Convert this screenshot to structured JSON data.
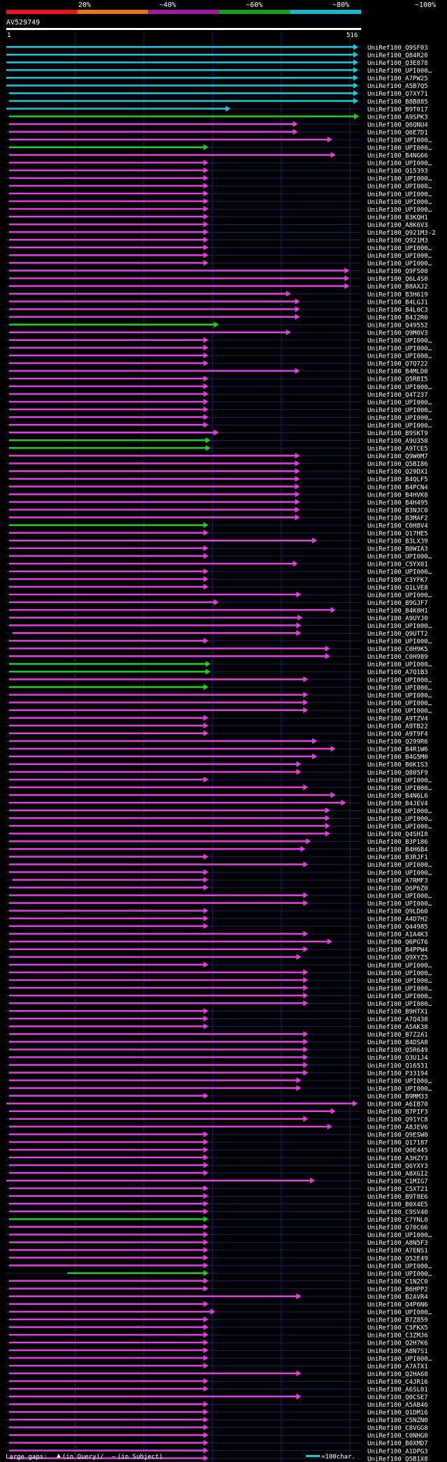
{
  "query": {
    "id": "AV529749",
    "start": "1",
    "end": "516",
    "length": 516
  },
  "identity_scale": {
    "labels": [
      "20%",
      "~40%",
      "~60%",
      "~80%",
      "~100%"
    ],
    "colors": [
      "#e8141c",
      "#e8751a",
      "#9e1c9e",
      "#1c9e1c",
      "#1cb4c8"
    ]
  },
  "legend": {
    "large_gaps": "Large gaps:",
    "in_query": "(in Query)/",
    "in_subject": "(in Subject)",
    "scale": "=100char."
  },
  "colors": {
    "cyan": "#1cc8dc",
    "magenta": "#e040e0",
    "green": "#20d020",
    "grid": "#202060",
    "gap": "#ffffa0"
  },
  "hits": [
    {
      "id": "UniRef100_Q9SF03",
      "s": 1,
      "e": 513,
      "c": "c"
    },
    {
      "id": "UniRef100_Q84R20",
      "s": 1,
      "e": 513,
      "c": "c"
    },
    {
      "id": "UniRef100_Q3E878",
      "s": 1,
      "e": 513,
      "c": "c"
    },
    {
      "id": "UniRef100_UPI000…",
      "s": 1,
      "e": 513,
      "c": "c"
    },
    {
      "id": "UniRef100_A7PW25",
      "s": 1,
      "e": 513,
      "c": "c"
    },
    {
      "id": "UniRef100_A5B7Q5",
      "s": 1,
      "e": 513,
      "c": "c"
    },
    {
      "id": "UniRef100_Q7XY71",
      "s": 5,
      "e": 513,
      "c": "c"
    },
    {
      "id": "UniRef100_B8B885",
      "s": 5,
      "e": 513,
      "c": "c"
    },
    {
      "id": "UniRef100_B9T017",
      "s": 1,
      "e": 327,
      "c": "c"
    },
    {
      "id": "UniRef100_A9SPK3",
      "s": 5,
      "e": 514,
      "c": "g"
    },
    {
      "id": "UniRef100_Q6QNU4",
      "s": 5,
      "e": 425,
      "c": "m"
    },
    {
      "id": "UniRef100_Q6E7D1",
      "s": 5,
      "e": 425,
      "c": "m"
    },
    {
      "id": "UniRef100_UPI000…",
      "s": 5,
      "e": 475,
      "c": "m"
    },
    {
      "id": "UniRef100_UPI000…",
      "s": 5,
      "e": 295,
      "c": "g"
    },
    {
      "id": "UniRef100_B4NG66",
      "s": 5,
      "e": 480,
      "c": "m"
    },
    {
      "id": "UniRef100_UPI000…",
      "s": 5,
      "e": 295,
      "c": "m"
    },
    {
      "id": "UniRef100_Q15393",
      "s": 5,
      "e": 295,
      "c": "m"
    },
    {
      "id": "UniRef100_UPI000…",
      "s": 5,
      "e": 295,
      "c": "m"
    },
    {
      "id": "UniRef100_UPI000…",
      "s": 5,
      "e": 295,
      "c": "m"
    },
    {
      "id": "UniRef100_UPI000…",
      "s": 5,
      "e": 295,
      "c": "m"
    },
    {
      "id": "UniRef100_UPI000…",
      "s": 5,
      "e": 295,
      "c": "m"
    },
    {
      "id": "UniRef100_UPI000…",
      "s": 5,
      "e": 295,
      "c": "m"
    },
    {
      "id": "UniRef100_B3KQH1",
      "s": 5,
      "e": 295,
      "c": "m"
    },
    {
      "id": "UniRef100_A8K6V3",
      "s": 5,
      "e": 295,
      "c": "m"
    },
    {
      "id": "UniRef100_Q921M3-2",
      "s": 5,
      "e": 295,
      "c": "m"
    },
    {
      "id": "UniRef100_Q921M3",
      "s": 5,
      "e": 295,
      "c": "m"
    },
    {
      "id": "UniRef100_UPI000…",
      "s": 5,
      "e": 295,
      "c": "m"
    },
    {
      "id": "UniRef100_UPI000…",
      "s": 5,
      "e": 295,
      "c": "m"
    },
    {
      "id": "UniRef100_UPI000…",
      "s": 5,
      "e": 295,
      "c": "m"
    },
    {
      "id": "UniRef100_Q9FS08",
      "s": 5,
      "e": 500,
      "c": "m"
    },
    {
      "id": "UniRef100_Q6L4S0",
      "s": 5,
      "e": 500,
      "c": "m"
    },
    {
      "id": "UniRef100_B8AXJ2",
      "s": 5,
      "e": 500,
      "c": "m"
    },
    {
      "id": "UniRef100_B3H619",
      "s": 5,
      "e": 415,
      "c": "m"
    },
    {
      "id": "UniRef100_B4LGJ1",
      "s": 5,
      "e": 428,
      "c": "m"
    },
    {
      "id": "UniRef100_B4L0C3",
      "s": 5,
      "e": 428,
      "c": "m"
    },
    {
      "id": "UniRef100_B4J2R0",
      "s": 5,
      "e": 428,
      "c": "m"
    },
    {
      "id": "UniRef100_Q49552",
      "s": 5,
      "e": 310,
      "c": "g"
    },
    {
      "id": "UniRef100_Q9M0V3",
      "s": 5,
      "e": 415,
      "c": "m"
    },
    {
      "id": "UniRef100_UPI000…",
      "s": 5,
      "e": 295,
      "c": "m"
    },
    {
      "id": "UniRef100_UPI000…",
      "s": 5,
      "e": 295,
      "c": "m"
    },
    {
      "id": "UniRef100_UPI000…",
      "s": 5,
      "e": 295,
      "c": "m"
    },
    {
      "id": "UniRef100_Q7Q722",
      "s": 5,
      "e": 295,
      "c": "m"
    },
    {
      "id": "UniRef100_B4MLD0",
      "s": 5,
      "e": 428,
      "c": "m"
    },
    {
      "id": "UniRef100_Q5RBI5",
      "s": 5,
      "e": 295,
      "c": "m"
    },
    {
      "id": "UniRef100_UPI000…",
      "s": 5,
      "e": 295,
      "c": "m"
    },
    {
      "id": "UniRef100_Q4T237",
      "s": 5,
      "e": 295,
      "c": "m"
    },
    {
      "id": "UniRef100_UPI000…",
      "s": 5,
      "e": 295,
      "c": "m"
    },
    {
      "id": "UniRef100_UPI000…",
      "s": 5,
      "e": 295,
      "c": "m"
    },
    {
      "id": "UniRef100_UPI000…",
      "s": 5,
      "e": 295,
      "c": "m"
    },
    {
      "id": "UniRef100_UPI000…",
      "s": 5,
      "e": 295,
      "c": "m"
    },
    {
      "id": "UniRef100_B9SKT9",
      "s": 5,
      "e": 310,
      "c": "m"
    },
    {
      "id": "UniRef100_A9U358",
      "s": 5,
      "e": 298,
      "c": "g"
    },
    {
      "id": "UniRef100_A9TCE5",
      "s": 5,
      "e": 298,
      "c": "g"
    },
    {
      "id": "UniRef100_Q9W0M7",
      "s": 5,
      "e": 428,
      "c": "m"
    },
    {
      "id": "UniRef100_Q5BI86",
      "s": 5,
      "e": 428,
      "c": "m"
    },
    {
      "id": "UniRef100_Q29DX1",
      "s": 5,
      "e": 428,
      "c": "m"
    },
    {
      "id": "UniRef100_B4QLF5",
      "s": 5,
      "e": 428,
      "c": "m"
    },
    {
      "id": "UniRef100_B4PCN4",
      "s": 5,
      "e": 428,
      "c": "m"
    },
    {
      "id": "UniRef100_B4HVK0",
      "s": 5,
      "e": 428,
      "c": "m"
    },
    {
      "id": "UniRef100_B4H495",
      "s": 5,
      "e": 428,
      "c": "m"
    },
    {
      "id": "UniRef100_B3NJC0",
      "s": 5,
      "e": 428,
      "c": "m"
    },
    {
      "id": "UniRef100_B3MAF2",
      "s": 5,
      "e": 428,
      "c": "m"
    },
    {
      "id": "UniRef100_C0H8V4",
      "s": 5,
      "e": 295,
      "c": "g"
    },
    {
      "id": "UniRef100_Q17HE5",
      "s": 5,
      "e": 295,
      "c": "m"
    },
    {
      "id": "UniRef100_B3LX39",
      "s": 5,
      "e": 453,
      "c": "m"
    },
    {
      "id": "UniRef100_B0WIA3",
      "s": 5,
      "e": 295,
      "c": "m"
    },
    {
      "id": "UniRef100_UPI000…",
      "s": 5,
      "e": 295,
      "c": "m"
    },
    {
      "id": "UniRef100_C5YX01",
      "s": 5,
      "e": 425,
      "c": "m"
    },
    {
      "id": "UniRef100_UPI000…",
      "s": 5,
      "e": 295,
      "c": "m"
    },
    {
      "id": "UniRef100_C3YFK7",
      "s": 5,
      "e": 295,
      "c": "m"
    },
    {
      "id": "UniRef100_Q1LVE8",
      "s": 5,
      "e": 295,
      "c": "m"
    },
    {
      "id": "UniRef100_UPI000…",
      "s": 5,
      "e": 430,
      "c": "m"
    },
    {
      "id": "UniRef100_B9GJF7",
      "s": 5,
      "e": 310,
      "c": "m"
    },
    {
      "id": "UniRef100_B4K8H1",
      "s": 5,
      "e": 480,
      "c": "m"
    },
    {
      "id": "UniRef100_A9UYJ0",
      "s": 5,
      "e": 432,
      "c": "m"
    },
    {
      "id": "UniRef100_UPI000…",
      "s": 5,
      "e": 430,
      "c": "m"
    },
    {
      "id": "UniRef100_Q9UTT2",
      "s": 10,
      "e": 430,
      "c": "m"
    },
    {
      "id": "UniRef100_UPI000…",
      "s": 5,
      "e": 295,
      "c": "m"
    },
    {
      "id": "UniRef100_C0H9K5",
      "s": 5,
      "e": 472,
      "c": "m"
    },
    {
      "id": "UniRef100_C0H989",
      "s": 5,
      "e": 472,
      "c": "m"
    },
    {
      "id": "UniRef100_UPI000…",
      "s": 5,
      "e": 298,
      "c": "g"
    },
    {
      "id": "UniRef100_A7Q1B3",
      "s": 5,
      "e": 298,
      "c": "g"
    },
    {
      "id": "UniRef100_UPI000…",
      "s": 5,
      "e": 440,
      "c": "m"
    },
    {
      "id": "UniRef100_UPI000…",
      "s": 5,
      "e": 295,
      "c": "g"
    },
    {
      "id": "UniRef100_UPI000…",
      "s": 5,
      "e": 440,
      "c": "m"
    },
    {
      "id": "UniRef100_UPI000…",
      "s": 5,
      "e": 440,
      "c": "m"
    },
    {
      "id": "UniRef100_UPI000…",
      "s": 5,
      "e": 440,
      "c": "m"
    },
    {
      "id": "UniRef100_A9TZV4",
      "s": 5,
      "e": 295,
      "c": "m"
    },
    {
      "id": "UniRef100_A9TB22",
      "s": 5,
      "e": 295,
      "c": "m"
    },
    {
      "id": "UniRef100_A9T9F4",
      "s": 5,
      "e": 295,
      "c": "m"
    },
    {
      "id": "UniRef100_Q299R6",
      "s": 5,
      "e": 453,
      "c": "m"
    },
    {
      "id": "UniRef100_B4R1W6",
      "s": 5,
      "e": 480,
      "c": "m"
    },
    {
      "id": "UniRef100_B4G5M0",
      "s": 5,
      "e": 453,
      "c": "m"
    },
    {
      "id": "UniRef100_B6K1S3",
      "s": 5,
      "e": 430,
      "c": "m"
    },
    {
      "id": "UniRef100_Q805F9",
      "s": 5,
      "e": 430,
      "c": "m"
    },
    {
      "id": "UniRef100_UPI000…",
      "s": 5,
      "e": 295,
      "c": "m"
    },
    {
      "id": "UniRef100_UPI000…",
      "s": 5,
      "e": 440,
      "c": "m"
    },
    {
      "id": "UniRef100_B4N6L6",
      "s": 5,
      "e": 480,
      "c": "m"
    },
    {
      "id": "UniRef100_B4JEV4",
      "s": 5,
      "e": 495,
      "c": "m"
    },
    {
      "id": "UniRef100_UPI000…",
      "s": 5,
      "e": 472,
      "c": "m"
    },
    {
      "id": "UniRef100_UPI000…",
      "s": 5,
      "e": 472,
      "c": "m"
    },
    {
      "id": "UniRef100_UPI000…",
      "s": 5,
      "e": 472,
      "c": "m"
    },
    {
      "id": "UniRef100_Q4SHI8",
      "s": 5,
      "e": 472,
      "c": "m"
    },
    {
      "id": "UniRef100_B3P186",
      "s": 5,
      "e": 444,
      "c": "m"
    },
    {
      "id": "UniRef100_B4H6B4",
      "s": 5,
      "e": 436,
      "c": "m"
    },
    {
      "id": "UniRef100_B3RJF1",
      "s": 5,
      "e": 295,
      "c": "m"
    },
    {
      "id": "UniRef100_UPI000…",
      "s": 5,
      "e": 440,
      "c": "m"
    },
    {
      "id": "UniRef100_UPI000…",
      "s": 5,
      "e": 295,
      "c": "m"
    },
    {
      "id": "UniRef100_A7RMF3",
      "s": 10,
      "e": 295,
      "c": "m"
    },
    {
      "id": "UniRef100_Q6P6Z0",
      "s": 5,
      "e": 295,
      "c": "m"
    },
    {
      "id": "UniRef100_UPI000…",
      "s": 5,
      "e": 440,
      "c": "m"
    },
    {
      "id": "UniRef100_UPI000…",
      "s": 5,
      "e": 440,
      "c": "m"
    },
    {
      "id": "UniRef100_Q9LD60",
      "s": 5,
      "e": 295,
      "c": "m"
    },
    {
      "id": "UniRef100_A4D7H2",
      "s": 5,
      "e": 295,
      "c": "m"
    },
    {
      "id": "UniRef100_Q44985",
      "s": 5,
      "e": 295,
      "c": "m"
    },
    {
      "id": "UniRef100_A1A4K3",
      "s": 5,
      "e": 440,
      "c": "m"
    },
    {
      "id": "UniRef100_Q6PGT6",
      "s": 5,
      "e": 475,
      "c": "m"
    },
    {
      "id": "UniRef100_B4PPW4",
      "s": 5,
      "e": 440,
      "c": "m"
    },
    {
      "id": "UniRef100_Q9XYZ5",
      "s": 5,
      "e": 430,
      "c": "m"
    },
    {
      "id": "UniRef100_UPI000…",
      "s": 5,
      "e": 295,
      "c": "m"
    },
    {
      "id": "UniRef100_UPI000…",
      "s": 5,
      "e": 440,
      "c": "m"
    },
    {
      "id": "UniRef100_UPI000…",
      "s": 5,
      "e": 440,
      "c": "m"
    },
    {
      "id": "UniRef100_UPI000…",
      "s": 5,
      "e": 440,
      "c": "m"
    },
    {
      "id": "UniRef100_UPI000…",
      "s": 5,
      "e": 440,
      "c": "m"
    },
    {
      "id": "UniRef100_UPI000…",
      "s": 5,
      "e": 440,
      "c": "m"
    },
    {
      "id": "UniRef100_B9HTX1",
      "s": 5,
      "e": 295,
      "c": "m"
    },
    {
      "id": "UniRef100_A7Q438",
      "s": 5,
      "e": 295,
      "c": "m"
    },
    {
      "id": "UniRef100_A5AK38",
      "s": 5,
      "e": 295,
      "c": "m"
    },
    {
      "id": "UniRef100_B7Z2A1",
      "s": 5,
      "e": 440,
      "c": "m"
    },
    {
      "id": "UniRef100_B4DSA8",
      "s": 5,
      "e": 440,
      "c": "m"
    },
    {
      "id": "UniRef100_Q5R649",
      "s": 5,
      "e": 440,
      "c": "m"
    },
    {
      "id": "UniRef100_Q3U1J4",
      "s": 5,
      "e": 440,
      "c": "m"
    },
    {
      "id": "UniRef100_Q16531",
      "s": 5,
      "e": 440,
      "c": "m"
    },
    {
      "id": "UniRef100_P33194",
      "s": 5,
      "e": 440,
      "c": "m"
    },
    {
      "id": "UniRef100_UPI000…",
      "s": 5,
      "e": 430,
      "c": "m"
    },
    {
      "id": "UniRef100_UPI000…",
      "s": 5,
      "e": 430,
      "c": "m"
    },
    {
      "id": "UniRef100_B9MM33",
      "s": 5,
      "e": 295,
      "c": "m"
    },
    {
      "id": "UniRef100_A6IB70",
      "s": 1,
      "e": 512,
      "c": "m"
    },
    {
      "id": "UniRef100_B7PIF3",
      "s": 5,
      "e": 480,
      "c": "m"
    },
    {
      "id": "UniRef100_Q91YC8",
      "s": 5,
      "e": 440,
      "c": "m"
    },
    {
      "id": "UniRef100_A8JEV6",
      "s": 5,
      "e": 475,
      "c": "m"
    },
    {
      "id": "UniRef100_Q9ESW0",
      "s": 5,
      "e": 295,
      "c": "m"
    },
    {
      "id": "UniRef100_Q17187",
      "s": 5,
      "e": 295,
      "c": "m"
    },
    {
      "id": "UniRef100_Q0E445",
      "s": 5,
      "e": 295,
      "c": "m"
    },
    {
      "id": "UniRef100_A3HZY3",
      "s": 5,
      "e": 295,
      "c": "m"
    },
    {
      "id": "UniRef100_Q6YXY3",
      "s": 5,
      "e": 295,
      "c": "m"
    },
    {
      "id": "UniRef100_A8XGI2",
      "s": 5,
      "e": 295,
      "c": "m"
    },
    {
      "id": "UniRef100_C1MIG7",
      "s": 1,
      "e": 450,
      "c": "m"
    },
    {
      "id": "UniRef100_C5XT21",
      "s": 5,
      "e": 295,
      "c": "m"
    },
    {
      "id": "UniRef100_B9T8E6",
      "s": 5,
      "e": 295,
      "c": "m"
    },
    {
      "id": "UniRef100_B0X4E5",
      "s": 5,
      "e": 295,
      "c": "m"
    },
    {
      "id": "UniRef100_C9SV40",
      "s": 5,
      "e": 295,
      "c": "m"
    },
    {
      "id": "UniRef100_C7YNL0",
      "s": 5,
      "e": 295,
      "c": "g"
    },
    {
      "id": "UniRef100_Q70C66",
      "s": 5,
      "e": 295,
      "c": "m"
    },
    {
      "id": "UniRef100_UPI000…",
      "s": 5,
      "e": 295,
      "c": "m"
    },
    {
      "id": "UniRef100_A8N5F3",
      "s": 5,
      "e": 295,
      "c": "m"
    },
    {
      "id": "UniRef100_A7ENS1",
      "s": 5,
      "e": 295,
      "c": "m"
    },
    {
      "id": "UniRef100_Q52E49",
      "s": 5,
      "e": 295,
      "c": "m"
    },
    {
      "id": "UniRef100_UPI000…",
      "s": 5,
      "e": 295,
      "c": "m"
    },
    {
      "id": "UniRef100_UPI000…",
      "s": 90,
      "e": 295,
      "c": "g"
    },
    {
      "id": "UniRef100_C1N2C0",
      "s": 5,
      "e": 295,
      "c": "m"
    },
    {
      "id": "UniRef100_B6HPP2",
      "s": 5,
      "e": 295,
      "c": "m"
    },
    {
      "id": "UniRef100_B2AVR4",
      "s": 5,
      "e": 430,
      "c": "m"
    },
    {
      "id": "UniRef100_Q4P6N6",
      "s": 5,
      "e": 295,
      "c": "m"
    },
    {
      "id": "UniRef100_UPI000…",
      "s": 5,
      "e": 305,
      "c": "m"
    },
    {
      "id": "UniRef100_B7Z859",
      "s": 5,
      "e": 295,
      "c": "m"
    },
    {
      "id": "UniRef100_C5FKX5",
      "s": 5,
      "e": 295,
      "c": "m"
    },
    {
      "id": "UniRef100_C3ZMJ6",
      "s": 5,
      "e": 295,
      "c": "m"
    },
    {
      "id": "UniRef100_Q2H7K6",
      "s": 5,
      "e": 295,
      "c": "m"
    },
    {
      "id": "UniRef100_A8N7S1",
      "s": 5,
      "e": 295,
      "c": "m"
    },
    {
      "id": "UniRef100_UPI000…",
      "s": 5,
      "e": 295,
      "c": "m"
    },
    {
      "id": "UniRef100_A7ATX1",
      "s": 5,
      "e": 295,
      "c": "m"
    },
    {
      "id": "UniRef100_Q2HA68",
      "s": 5,
      "e": 430,
      "c": "m"
    },
    {
      "id": "UniRef100_C4JR16",
      "s": 5,
      "e": 295,
      "c": "m"
    },
    {
      "id": "UniRef100_A6SL01",
      "s": 5,
      "e": 295,
      "c": "m"
    },
    {
      "id": "UniRef100_Q0CSE7",
      "s": 5,
      "e": 430,
      "c": "m"
    },
    {
      "id": "UniRef100_A5AB46",
      "s": 5,
      "e": 295,
      "c": "m"
    },
    {
      "id": "UniRef100_Q1DM16",
      "s": 5,
      "e": 295,
      "c": "m"
    },
    {
      "id": "UniRef100_C5NZN0",
      "s": 5,
      "e": 295,
      "c": "m"
    },
    {
      "id": "UniRef100_C8VGG8",
      "s": 5,
      "e": 295,
      "c": "m"
    },
    {
      "id": "UniRef100_C0NHG0",
      "s": 5,
      "e": 295,
      "c": "m"
    },
    {
      "id": "UniRef100_B0XMD7",
      "s": 5,
      "e": 295,
      "c": "m"
    },
    {
      "id": "UniRef100_A1DPG3",
      "s": 5,
      "e": 295,
      "c": "m"
    },
    {
      "id": "UniRef100_Q5B1X8",
      "s": 5,
      "e": 295,
      "c": "m"
    }
  ]
}
